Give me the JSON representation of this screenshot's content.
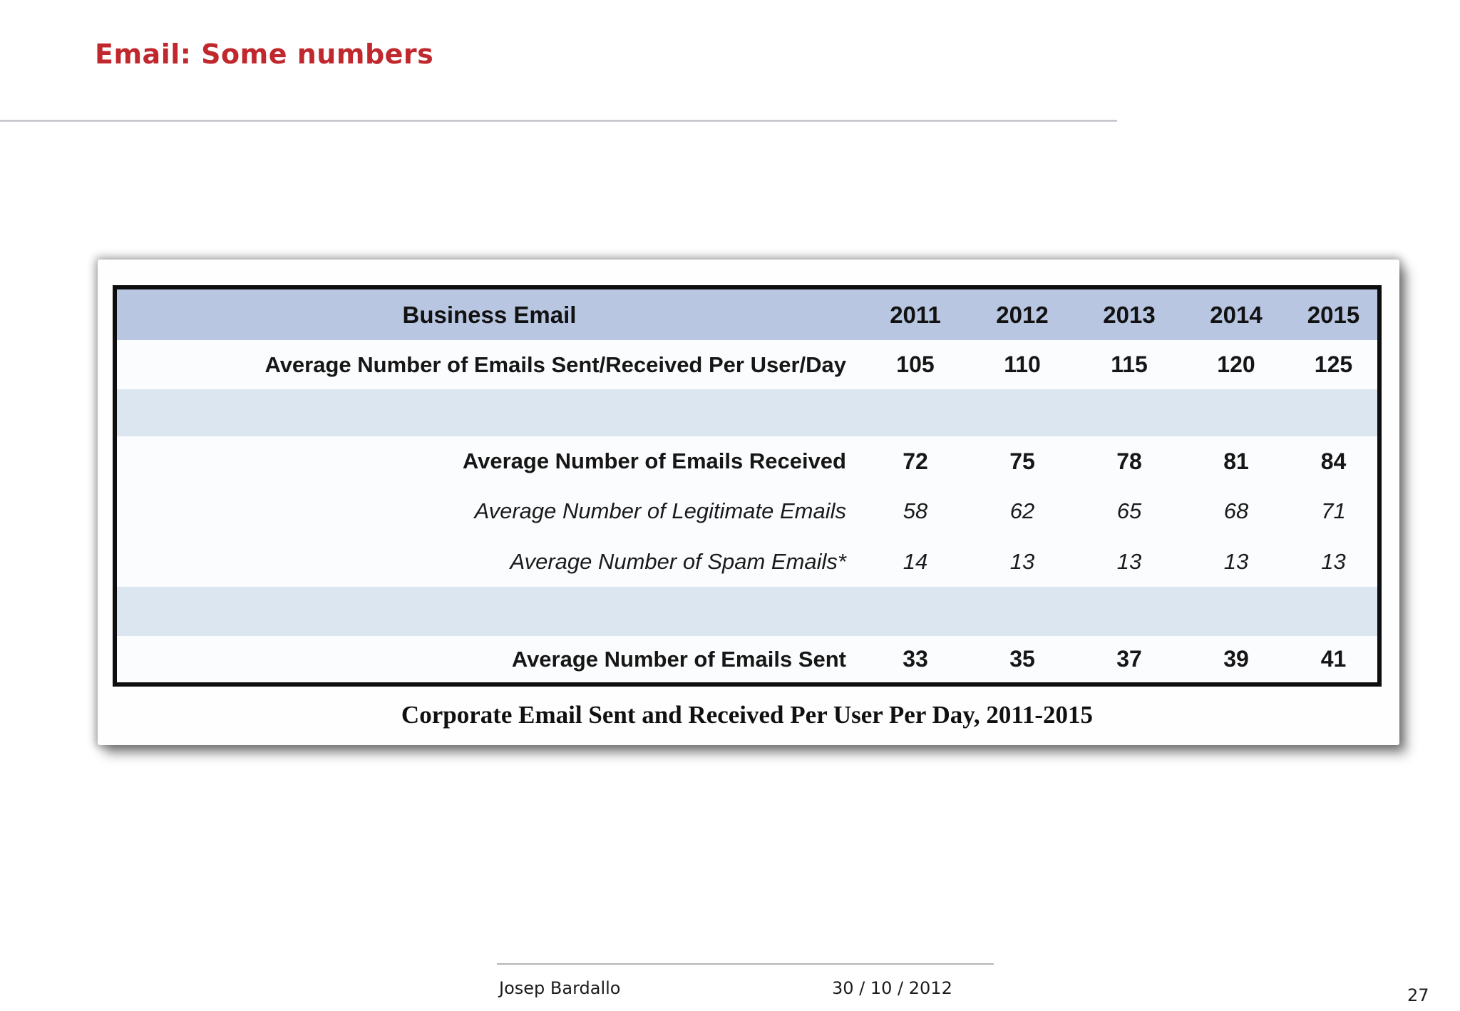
{
  "slide": {
    "title": "Email: Some numbers",
    "footer": {
      "author": "Josep Bardallo",
      "date": "30 / 10 / 2012",
      "page_number": "27"
    }
  },
  "table": {
    "header": {
      "label": "Business Email",
      "years": [
        "2011",
        "2012",
        "2013",
        "2014",
        "2015"
      ]
    },
    "rows": [
      {
        "label": "Average Number of Emails Sent/Received Per User/Day",
        "values": [
          "105",
          "110",
          "115",
          "120",
          "125"
        ],
        "emphasis": "bold"
      },
      {
        "label": "Average Number of Emails Received",
        "values": [
          "72",
          "75",
          "78",
          "81",
          "84"
        ],
        "emphasis": "bold"
      },
      {
        "label": "Average Number of Legitimate Emails",
        "values": [
          "58",
          "62",
          "65",
          "68",
          "71"
        ],
        "emphasis": "italic"
      },
      {
        "label": "Average Number of Spam Emails*",
        "values": [
          "14",
          "13",
          "13",
          "13",
          "13"
        ],
        "emphasis": "italic"
      },
      {
        "label": "Average Number of Emails Sent",
        "values": [
          "33",
          "35",
          "37",
          "39",
          "41"
        ],
        "emphasis": "bold"
      }
    ],
    "caption": "Corporate Email Sent and Received Per User Per Day, 2011-2015"
  },
  "colors": {
    "title_red": "#c0282e",
    "header_row_blue": "#b8c6e1",
    "spacer_row_blue": "#dbe6f1",
    "table_border_black": "#0e0e0e"
  },
  "chart_data": {
    "type": "table",
    "title": "Corporate Email Sent and Received Per User Per Day, 2011-2015",
    "columns": [
      "Business Email",
      "2011",
      "2012",
      "2013",
      "2014",
      "2015"
    ],
    "rows": [
      [
        "Average Number of Emails Sent/Received Per User/Day",
        105,
        110,
        115,
        120,
        125
      ],
      [
        "Average Number of Emails Received",
        72,
        75,
        78,
        81,
        84
      ],
      [
        "Average Number of Legitimate Emails",
        58,
        62,
        65,
        68,
        71
      ],
      [
        "Average Number of Spam Emails*",
        14,
        13,
        13,
        13,
        13
      ],
      [
        "Average Number of Emails Sent",
        33,
        35,
        37,
        39,
        41
      ]
    ]
  }
}
